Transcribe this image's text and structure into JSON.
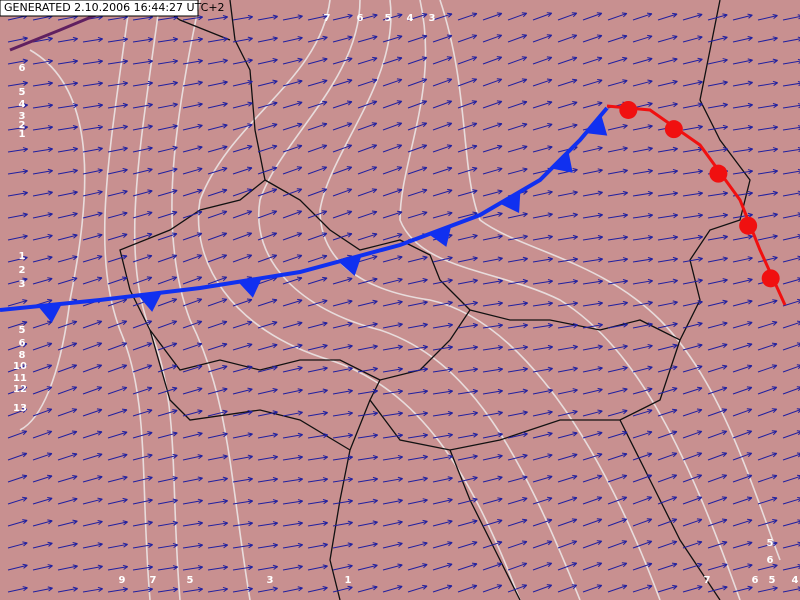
{
  "header": {
    "generated": "GENERATED 2.10.2006 16:44:27 UTC+2"
  },
  "contour_labels": [
    "7",
    "6",
    "5",
    "4",
    "3",
    "6",
    "5",
    "4",
    "3",
    "2",
    "1",
    "1",
    "2",
    "3",
    "5",
    "6",
    "8",
    "10",
    "11",
    "12",
    "13",
    "9",
    "7",
    "5",
    "3",
    "1",
    "7",
    "6",
    "5",
    "4",
    "5",
    "6"
  ]
}
